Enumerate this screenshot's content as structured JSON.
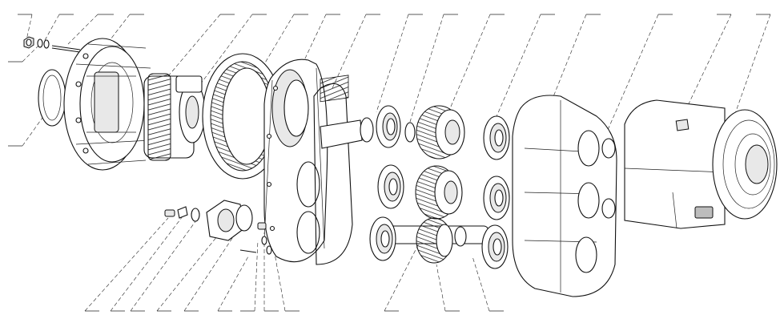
{
  "diagram": {
    "kind": "exploded-view",
    "top_callout_count": 17,
    "bottom_callout_count": 12,
    "left_callout_count": 2,
    "label_text": []
  }
}
